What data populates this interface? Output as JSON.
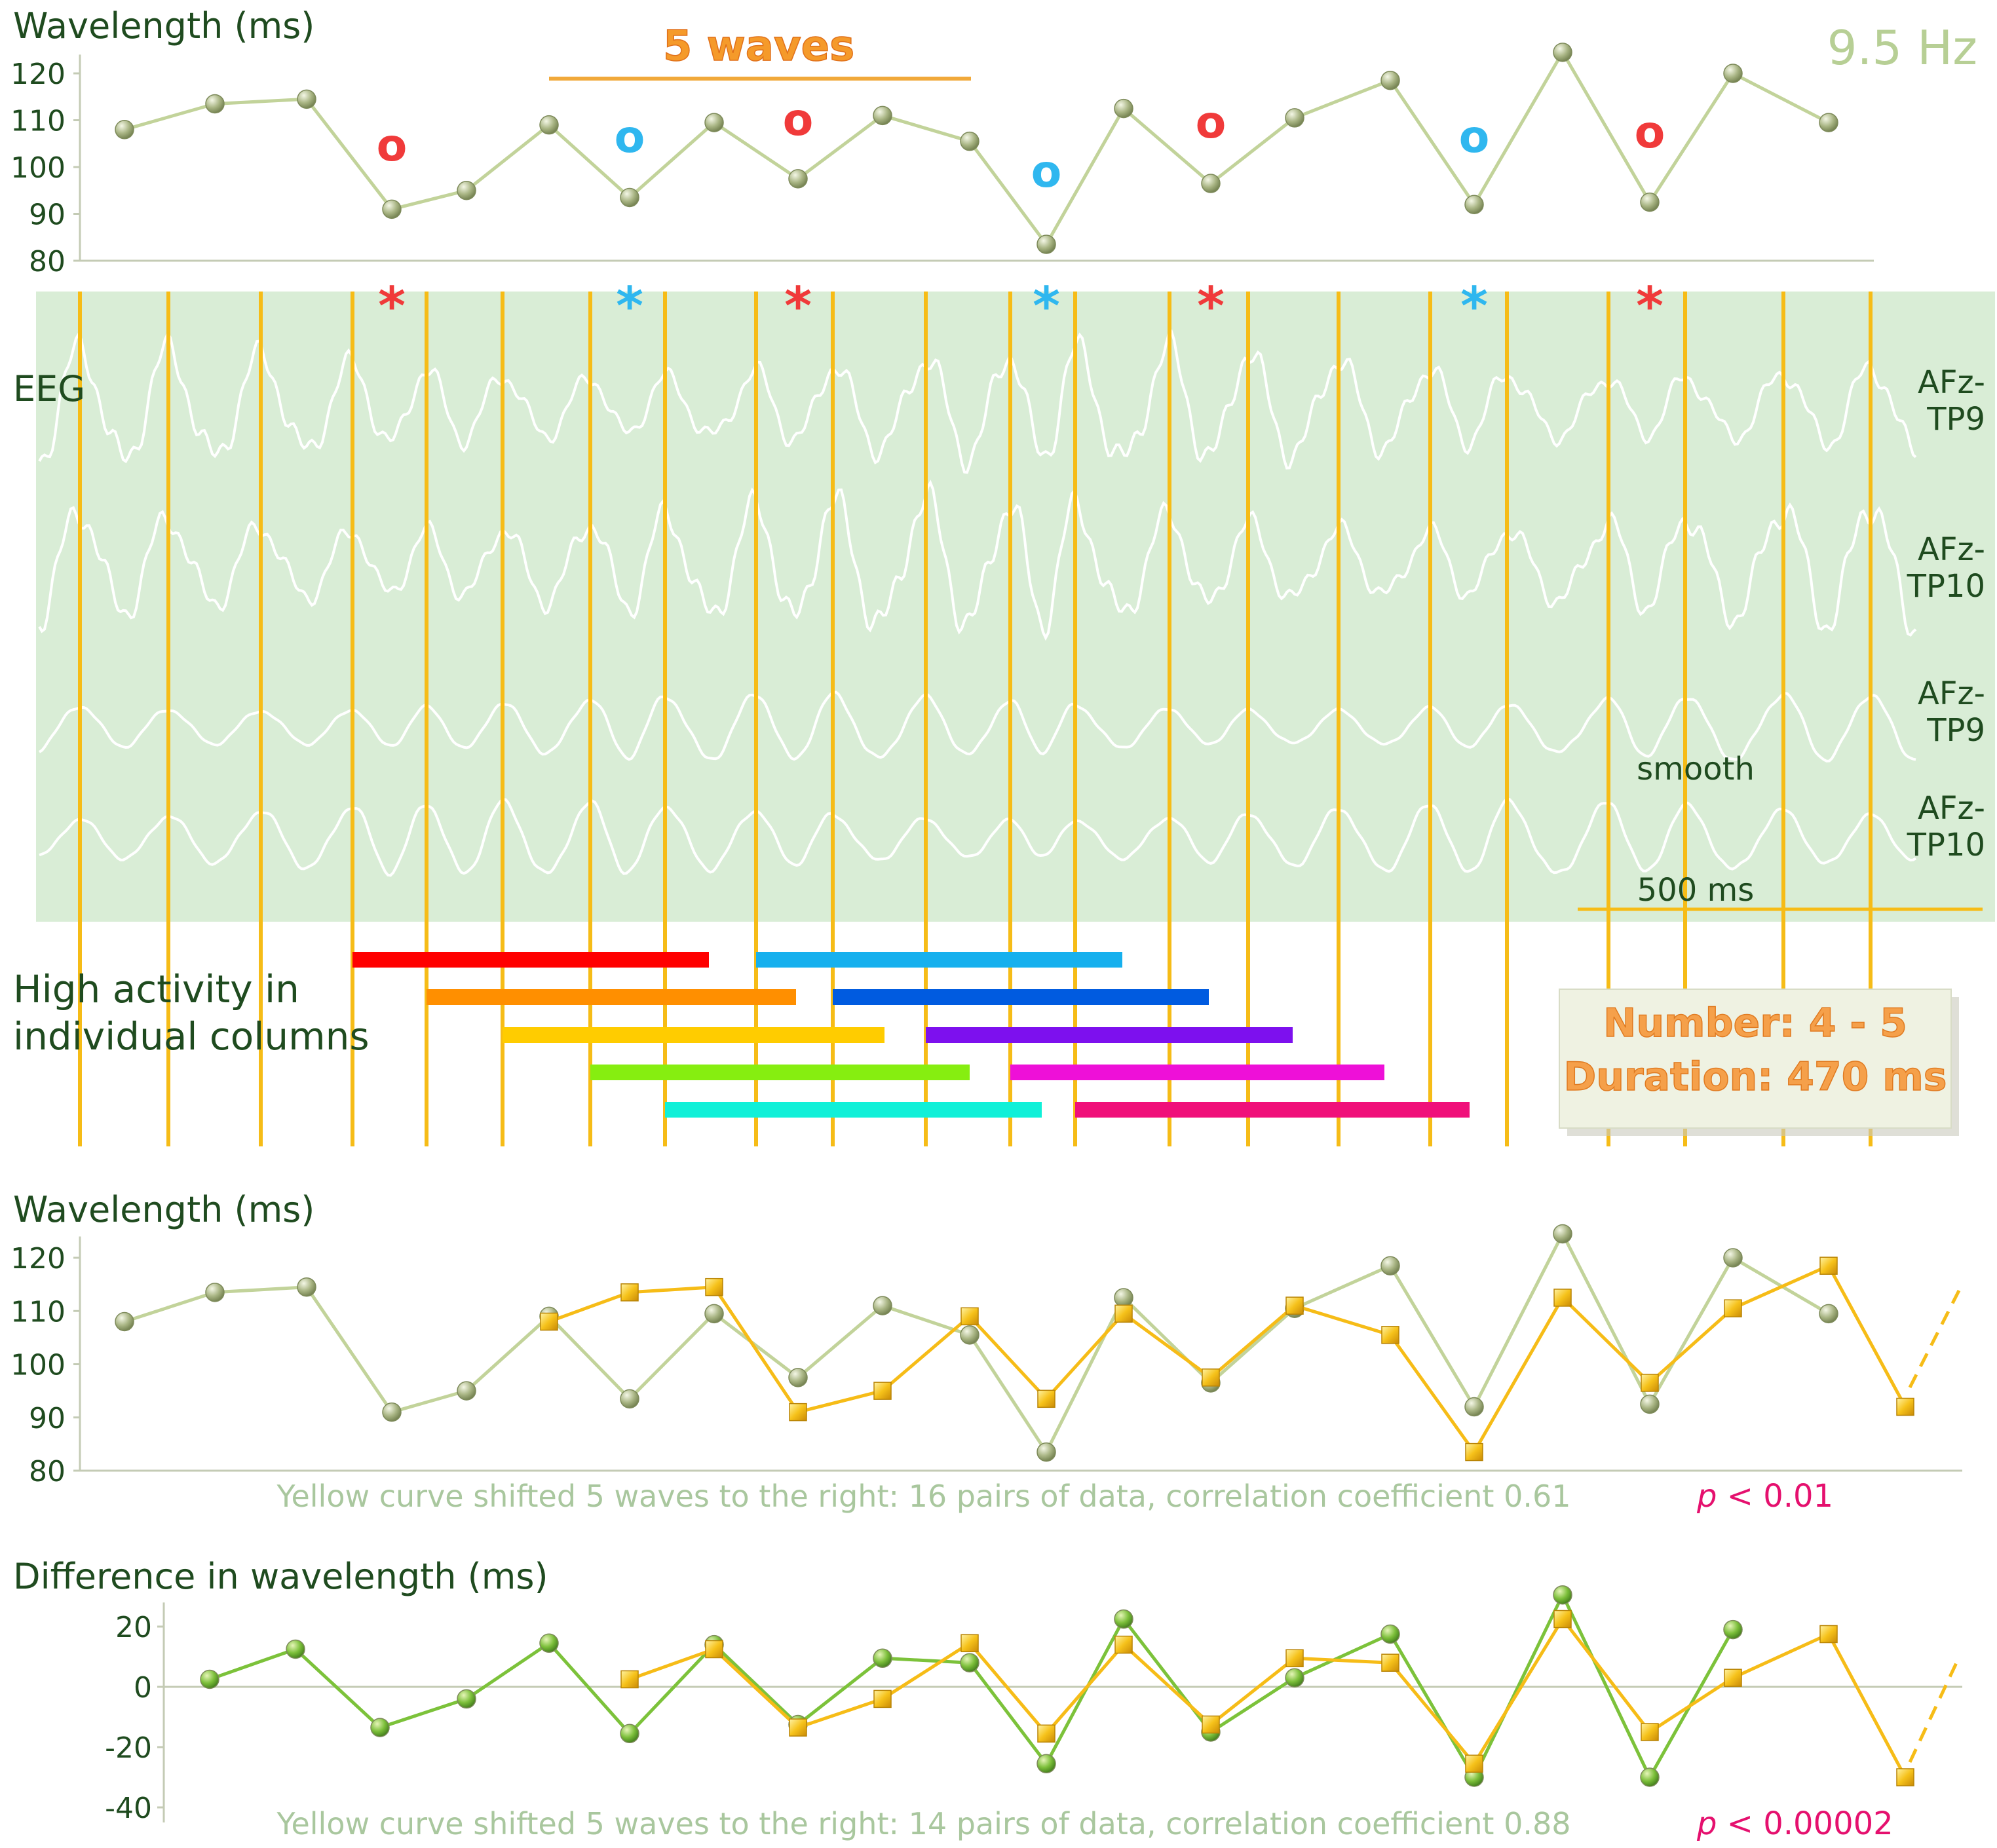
{
  "top_chart": {
    "title": "Wavelength (ms)",
    "frequency_label": "9.5 Hz",
    "waves_label": "5 waves",
    "ylim": [
      80,
      124
    ],
    "yticks": [
      "80",
      "90",
      "100",
      "110",
      "120"
    ]
  },
  "eeg": {
    "label": "EEG",
    "channels": [
      "AFz-\nTP9",
      "AFz-\nTP10",
      "AFz-\nTP9",
      "AFz-\nTP10"
    ],
    "channel_lines": [
      [
        "AFz-",
        "TP9"
      ],
      [
        "AFz-",
        "TP10"
      ],
      [
        "AFz-",
        "TP9"
      ],
      [
        "AFz-",
        "TP10"
      ]
    ],
    "smooth_label": "smooth",
    "scale_label": "500 ms"
  },
  "activity": {
    "label_line1": "High activity in",
    "label_line2": "individual columns",
    "number_label": "Number:  4 - 5",
    "duration_label": "Duration: 470 ms"
  },
  "markers": {
    "circle_symbol": "o",
    "star_symbol": "*",
    "circle_colors": [
      "red",
      "blue",
      "red",
      "blue",
      "red",
      "blue",
      "red"
    ],
    "star_colors": [
      "red",
      "blue",
      "red",
      "blue",
      "red",
      "blue",
      "red"
    ]
  },
  "bottom1": {
    "title": "Wavelength (ms)",
    "yticks": [
      "80",
      "90",
      "100",
      "110",
      "120"
    ],
    "caption": "Yellow curve shifted 5 waves to the right:  16 pairs of data,  correlation coefficient 0.61",
    "p_symbol": "p",
    "p_rest": " < 0.01"
  },
  "bottom2": {
    "title": "Difference in wavelength (ms)",
    "yticks": [
      "-40",
      "-20",
      "0",
      "20"
    ],
    "caption": "Yellow curve shifted 5 waves to the right:  14 pairs of data,  correlation coefficient 0.88",
    "p_symbol": "p",
    "p_rest": " < 0.00002"
  },
  "colors": {
    "green_line": "#c2d39a",
    "green_dot": "#9aab73",
    "yellow": "#f6bc17",
    "column_line": "#f6bc17",
    "eeg_background": "#d9edd6",
    "text_dark_green": "#1f4b1f",
    "red": "#f03a3a",
    "blue": "#2fb7ef",
    "p_value": "#e5106e",
    "caption": "#a9c79e"
  },
  "chart_data": [
    {
      "type": "line",
      "title": "Wavelength (ms)",
      "ylabel": "",
      "ylim": [
        80,
        124
      ],
      "series": [
        {
          "values": [
            108,
            113.5,
            114.5,
            91,
            95,
            109,
            93.5,
            109.5,
            97.5,
            111,
            105.5,
            83.5,
            112.5,
            96.5,
            110.5,
            118.5,
            92,
            124.5,
            92.5,
            120,
            109.5
          ]
        }
      ]
    },
    {
      "type": "line",
      "title": "Wavelength (ms)",
      "ylabel": "",
      "ylim": [
        80,
        124
      ],
      "series": [
        {
          "values": [
            108,
            113.5,
            114.5,
            91,
            95,
            109,
            93.5,
            109.5,
            97.5,
            111,
            105.5,
            83.5,
            112.5,
            96.5,
            110.5,
            118.5,
            92,
            124.5,
            92.5,
            120,
            109.5
          ]
        },
        {
          "start_index": 5,
          "values": [
            108,
            113.5,
            114.5,
            91,
            95,
            109,
            93.5,
            109.5,
            97.5,
            111,
            105.5,
            83.5,
            112.5,
            96.5,
            110.5,
            118.5,
            92
          ]
        }
      ]
    },
    {
      "type": "line",
      "title": "Difference in wavelength (ms)",
      "ylabel": "",
      "ylim": [
        -45,
        28
      ],
      "series": [
        {
          "values": [
            2.5,
            12.5,
            -13.5,
            -4,
            14.5,
            -15.5,
            14,
            -12.5,
            9.5,
            8,
            -25.5,
            22.5,
            -15,
            3,
            17.5,
            -30,
            30.5,
            -30,
            19
          ]
        },
        {
          "start_index": 5,
          "values": [
            2.5,
            12.5,
            -13.5,
            -4,
            14.5,
            -15.5,
            14,
            -12.5,
            9.5,
            8,
            -25.5,
            22.5,
            -15,
            3,
            17.5,
            -30
          ]
        }
      ]
    }
  ]
}
